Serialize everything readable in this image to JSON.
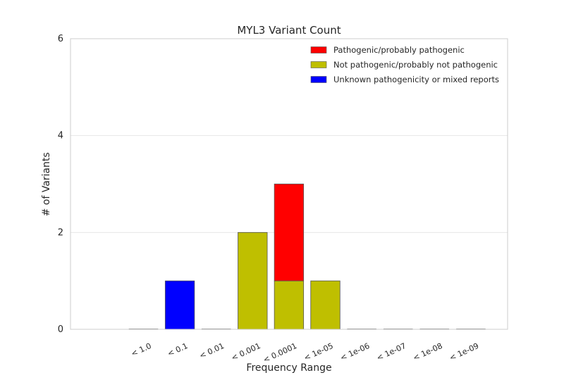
{
  "chart_data": {
    "type": "bar",
    "stacked": true,
    "title": "MYL3 Variant Count",
    "xlabel": "Frequency Range",
    "ylabel": "# of Variants",
    "categories": [
      "< 1.0",
      "< 0.1",
      "< 0.01",
      "< 0.001",
      "< 0.0001",
      "< 1e-05",
      "< 1e-06",
      "< 1e-07",
      "< 1e-08",
      "< 1e-09"
    ],
    "ylim": [
      0,
      6
    ],
    "yticks": [
      "0",
      "2",
      "4",
      "6"
    ],
    "grid": "horizontal",
    "legend_position": "top-right",
    "series": [
      {
        "name": "Not pathogenic/probably not pathogenic",
        "color": "#bfbf00",
        "values": [
          0,
          0,
          0,
          2,
          1,
          1,
          0,
          0,
          0,
          0
        ]
      },
      {
        "name": "Pathogenic/probably pathogenic",
        "color": "#ff0000",
        "values": [
          0,
          0,
          0,
          0,
          2,
          0,
          0,
          0,
          0,
          0
        ]
      },
      {
        "name": "Unknown pathogenicity or mixed reports",
        "color": "#0000ff",
        "values": [
          0,
          1,
          0,
          0,
          0,
          0,
          0,
          0,
          0,
          0
        ]
      }
    ],
    "legend_order": [
      1,
      0,
      2
    ]
  }
}
